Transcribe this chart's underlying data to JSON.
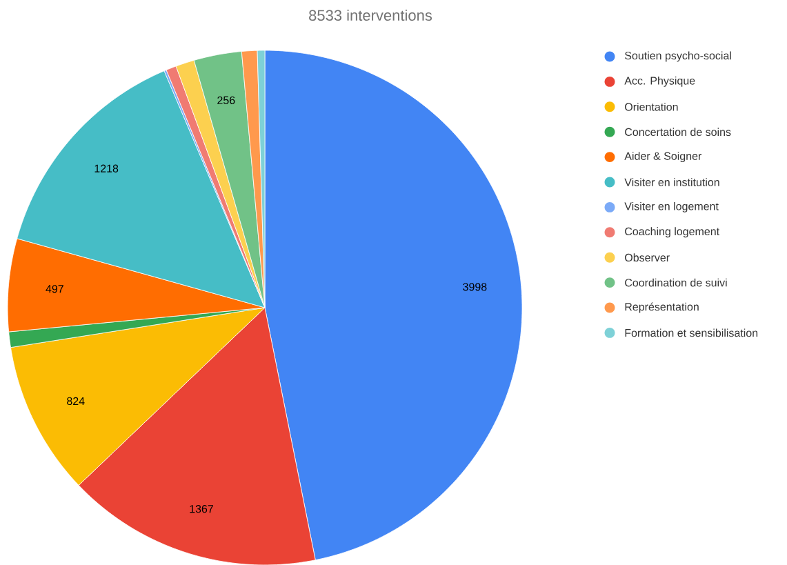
{
  "chart_data": {
    "type": "pie",
    "title": "8533 interventions",
    "categories": [
      "Soutien psycho-social",
      "Acc. Physique",
      "Orientation",
      "Concertation de soins",
      "Aider & Soigner",
      "Visiter en institution",
      "Visiter en logement",
      "Coaching logement",
      "Observer",
      "Coordination de suivi",
      "Représentation",
      "Formation et sensibilisation"
    ],
    "values": [
      3998,
      1367,
      824,
      83,
      497,
      1218,
      12,
      55,
      100,
      256,
      83,
      40
    ],
    "value_labels": [
      "3998",
      "1367",
      "824",
      null,
      "497",
      "1218",
      null,
      null,
      null,
      "256",
      null,
      null
    ],
    "colors": [
      "#4285f4",
      "#ea4335",
      "#fbbc04",
      "#34a853",
      "#ff6d01",
      "#46bdc6",
      "#7baaf7",
      "#f07b72",
      "#fcd04f",
      "#71c287",
      "#ff994d",
      "#7ed1d7"
    ],
    "legend": "right"
  }
}
